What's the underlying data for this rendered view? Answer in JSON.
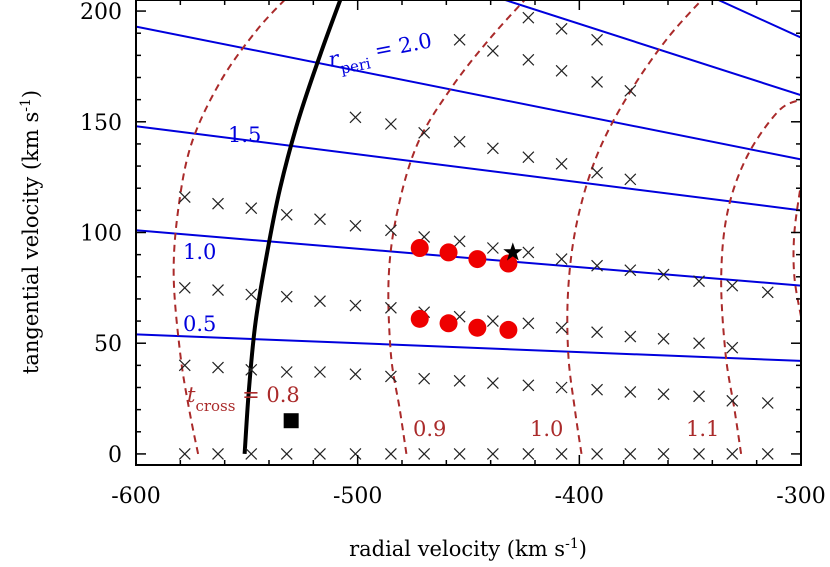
{
  "chart_data": {
    "type": "scatter",
    "xlabel": "radial velocity (km s",
    "xlabel_sup": "-1",
    "xlabel_close": ")",
    "ylabel": "tangential velocity (km s",
    "ylabel_sup": "-1",
    "ylabel_close": ")",
    "xlim": [
      -600,
      -300
    ],
    "ylim": [
      -5,
      205
    ],
    "x_ticks": [
      -600,
      -500,
      -400,
      -300
    ],
    "x_tick_labels": [
      "-600",
      "-500",
      "-400",
      "-300"
    ],
    "y_ticks": [
      0,
      50,
      100,
      150,
      200
    ],
    "y_tick_labels": [
      "0",
      "50",
      "100",
      "150",
      "200"
    ],
    "colors": {
      "peri": "#0000dd",
      "cross": "#aa2a2a",
      "points": "#ee0000",
      "boundary": "#000000"
    },
    "peri_lines": [
      {
        "label": "0.5",
        "x": [
          -600,
          -300
        ],
        "y": [
          54,
          42
        ]
      },
      {
        "label": "1.0",
        "x": [
          -600,
          -300
        ],
        "y": [
          101,
          76
        ]
      },
      {
        "label": "1.5",
        "x": [
          -600,
          -300
        ],
        "y": [
          148,
          110
        ]
      },
      {
        "label": "",
        "x": [
          -600,
          -300
        ],
        "y": [
          193,
          133
        ]
      },
      {
        "label": "",
        "x": [
          -480,
          -300
        ],
        "y": [
          220,
          162
        ]
      },
      {
        "label": "",
        "x": [
          -370,
          -300
        ],
        "y": [
          220,
          188
        ]
      }
    ],
    "peri_labels": {
      "main_var": "r",
      "main_sub": "peri",
      "main_eq": " = 2.0",
      "l15": "1.5",
      "l10": "1.0",
      "l05": "0.5"
    },
    "cross_curves": [
      {
        "label": "0.8",
        "points": [
          [
            -572,
            0
          ],
          [
            -576,
            20
          ],
          [
            -580,
            45
          ],
          [
            -583,
            80
          ],
          [
            -581,
            110
          ],
          [
            -575,
            140
          ],
          [
            -562,
            168
          ],
          [
            -545,
            192
          ],
          [
            -528,
            210
          ]
        ]
      },
      {
        "label": "0.9",
        "points": [
          [
            -478,
            0
          ],
          [
            -481,
            20
          ],
          [
            -485,
            45
          ],
          [
            -486,
            80
          ],
          [
            -482,
            110
          ],
          [
            -473,
            140
          ],
          [
            -458,
            165
          ],
          [
            -440,
            188
          ],
          [
            -420,
            210
          ]
        ]
      },
      {
        "label": "1.0",
        "points": [
          [
            -399,
            0
          ],
          [
            -402,
            20
          ],
          [
            -405,
            45
          ],
          [
            -405,
            75
          ],
          [
            -401,
            105
          ],
          [
            -392,
            135
          ],
          [
            -378,
            162
          ],
          [
            -360,
            188
          ],
          [
            -340,
            210
          ]
        ]
      },
      {
        "label": "1.1",
        "points": [
          [
            -327,
            0
          ],
          [
            -330,
            20
          ],
          [
            -334,
            45
          ],
          [
            -336,
            80
          ],
          [
            -333,
            110
          ],
          [
            -324,
            135
          ],
          [
            -310,
            155
          ],
          [
            -300,
            160
          ]
        ]
      },
      {
        "label": "",
        "points": [
          [
            -300,
            62
          ],
          [
            -303,
            80
          ],
          [
            -303,
            100
          ],
          [
            -300,
            122
          ]
        ]
      }
    ],
    "cross_labels": {
      "main_var": "t",
      "main_sub": "cross",
      "main_eq": " = 0.8",
      "l09": "0.9",
      "l10": "1.0",
      "l11": "1.1"
    },
    "boundary": [
      [
        -551,
        0
      ],
      [
        -549,
        30
      ],
      [
        -546,
        60
      ],
      [
        -541,
        90
      ],
      [
        -535,
        120
      ],
      [
        -527,
        150
      ],
      [
        -517,
        180
      ],
      [
        -506,
        210
      ]
    ],
    "grid_crosses": [
      [
        -578,
        0
      ],
      [
        -563,
        0
      ],
      [
        -548,
        0
      ],
      [
        -532,
        0
      ],
      [
        -517,
        0
      ],
      [
        -501,
        0
      ],
      [
        -485,
        0
      ],
      [
        -470,
        0
      ],
      [
        -454,
        0
      ],
      [
        -439,
        0
      ],
      [
        -423,
        0
      ],
      [
        -408,
        0
      ],
      [
        -392,
        0
      ],
      [
        -377,
        0
      ],
      [
        -362,
        0
      ],
      [
        -346,
        0
      ],
      [
        -331,
        0
      ],
      [
        -315,
        0
      ],
      [
        -578,
        40
      ],
      [
        -563,
        39
      ],
      [
        -548,
        38
      ],
      [
        -532,
        37
      ],
      [
        -517,
        37
      ],
      [
        -501,
        36
      ],
      [
        -485,
        35
      ],
      [
        -470,
        34
      ],
      [
        -454,
        33
      ],
      [
        -439,
        32
      ],
      [
        -423,
        31
      ],
      [
        -408,
        30
      ],
      [
        -392,
        29
      ],
      [
        -377,
        28
      ],
      [
        -362,
        27
      ],
      [
        -346,
        26
      ],
      [
        -331,
        24
      ],
      [
        -315,
        23
      ],
      [
        -578,
        75
      ],
      [
        -563,
        74
      ],
      [
        -548,
        72
      ],
      [
        -532,
        71
      ],
      [
        -517,
        69
      ],
      [
        -501,
        67
      ],
      [
        -485,
        66
      ],
      [
        -470,
        64
      ],
      [
        -454,
        62
      ],
      [
        -439,
        60
      ],
      [
        -423,
        59
      ],
      [
        -408,
        57
      ],
      [
        -392,
        55
      ],
      [
        -377,
        53
      ],
      [
        -362,
        52
      ],
      [
        -346,
        50
      ],
      [
        -331,
        48
      ],
      [
        -578,
        116
      ],
      [
        -563,
        113
      ],
      [
        -548,
        111
      ],
      [
        -532,
        108
      ],
      [
        -517,
        106
      ],
      [
        -501,
        103
      ],
      [
        -485,
        101
      ],
      [
        -470,
        98
      ],
      [
        -454,
        96
      ],
      [
        -439,
        93
      ],
      [
        -423,
        91
      ],
      [
        -408,
        88
      ],
      [
        -392,
        85
      ],
      [
        -377,
        83
      ],
      [
        -362,
        81
      ],
      [
        -346,
        78
      ],
      [
        -331,
        76
      ],
      [
        -315,
        73
      ],
      [
        -501,
        152
      ],
      [
        -485,
        149
      ],
      [
        -470,
        145
      ],
      [
        -454,
        141
      ],
      [
        -439,
        138
      ],
      [
        -423,
        134
      ],
      [
        -408,
        131
      ],
      [
        -392,
        127
      ],
      [
        -377,
        124
      ],
      [
        -454,
        187
      ],
      [
        -439,
        182
      ],
      [
        -423,
        178
      ],
      [
        -408,
        173
      ],
      [
        -392,
        168
      ],
      [
        -377,
        164
      ],
      [
        -423,
        197
      ],
      [
        -408,
        192
      ],
      [
        -392,
        187
      ]
    ],
    "red_points": [
      {
        "x": -472,
        "y": 93
      },
      {
        "x": -459,
        "y": 91
      },
      {
        "x": -446,
        "y": 88
      },
      {
        "x": -432,
        "y": 86
      },
      {
        "x": -472,
        "y": 61
      },
      {
        "x": -459,
        "y": 59
      },
      {
        "x": -446,
        "y": 57
      },
      {
        "x": -432,
        "y": 56
      }
    ],
    "star": {
      "x": -430,
      "y": 91
    },
    "square": {
      "x": -530,
      "y": 15
    }
  }
}
